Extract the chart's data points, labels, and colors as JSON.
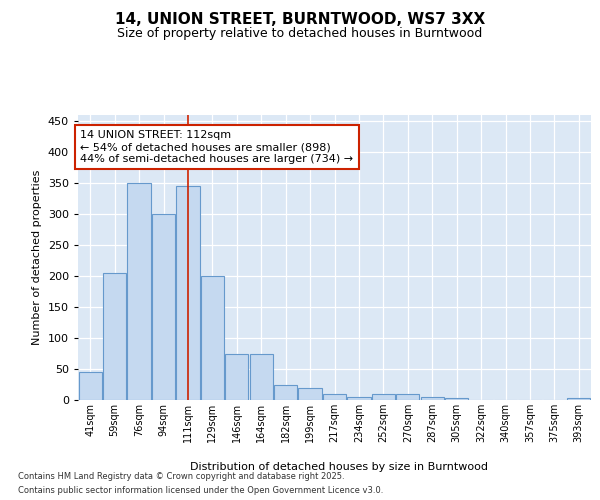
{
  "title1": "14, UNION STREET, BURNTWOOD, WS7 3XX",
  "title2": "Size of property relative to detached houses in Burntwood",
  "xlabel": "Distribution of detached houses by size in Burntwood",
  "ylabel": "Number of detached properties",
  "categories": [
    "41sqm",
    "59sqm",
    "76sqm",
    "94sqm",
    "111sqm",
    "129sqm",
    "146sqm",
    "164sqm",
    "182sqm",
    "199sqm",
    "217sqm",
    "234sqm",
    "252sqm",
    "270sqm",
    "287sqm",
    "305sqm",
    "322sqm",
    "340sqm",
    "357sqm",
    "375sqm",
    "393sqm"
  ],
  "values": [
    45,
    205,
    350,
    300,
    345,
    200,
    75,
    75,
    25,
    20,
    10,
    5,
    10,
    10,
    5,
    3,
    0,
    0,
    0,
    0,
    3
  ],
  "bar_color": "#c5d9f0",
  "bar_edge_color": "#6699cc",
  "vline_x_index": 4,
  "vline_color": "#cc2200",
  "annotation_line1": "14 UNION STREET: 112sqm",
  "annotation_line2": "← 54% of detached houses are smaller (898)",
  "annotation_line3": "44% of semi-detached houses are larger (734) →",
  "annotation_box_edge_color": "#cc2200",
  "ylim": [
    0,
    460
  ],
  "yticks": [
    0,
    50,
    100,
    150,
    200,
    250,
    300,
    350,
    400,
    450
  ],
  "footer_line1": "Contains HM Land Registry data © Crown copyright and database right 2025.",
  "footer_line2": "Contains public sector information licensed under the Open Government Licence v3.0.",
  "bg_color": "#dce8f5",
  "fig_bg_color": "#ffffff"
}
